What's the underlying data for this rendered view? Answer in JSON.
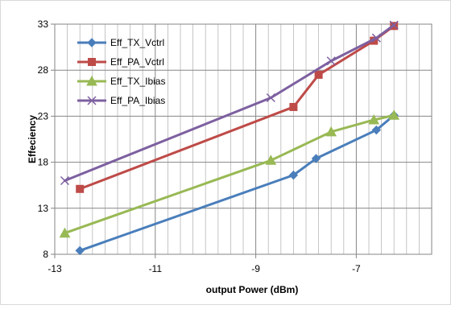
{
  "chart_data": {
    "type": "line",
    "title": "",
    "xlabel": "output Power (dBm)",
    "ylabel": "Effeciency",
    "xlim": [
      -13,
      -5.5
    ],
    "ylim": [
      8,
      33
    ],
    "xticks": [
      -13,
      -11,
      -9,
      -7
    ],
    "yticks": [
      8,
      13,
      18,
      23,
      28,
      33
    ],
    "grid": true,
    "legend_position": "top-left",
    "series": [
      {
        "name": "Eff_TX_Vctrl",
        "color": "#4a7ebb",
        "marker": "diamond",
        "x": [
          -12.5,
          -8.25,
          -7.8,
          -6.6,
          -6.25
        ],
        "y": [
          8.4,
          16.6,
          18.4,
          21.5,
          23.1
        ]
      },
      {
        "name": "Eff_PA_Vctrl",
        "color": "#be4b48",
        "marker": "square",
        "x": [
          -12.5,
          -8.25,
          -7.75,
          -6.65,
          -6.25
        ],
        "y": [
          15.1,
          24.0,
          27.5,
          31.2,
          32.8
        ]
      },
      {
        "name": "Eff_TX_Ibias",
        "color": "#98b954",
        "marker": "triangle",
        "x": [
          -12.8,
          -8.7,
          -7.5,
          -6.65,
          -6.25
        ],
        "y": [
          10.3,
          18.2,
          21.3,
          22.6,
          23.1
        ]
      },
      {
        "name": "Eff_PA_Ibias",
        "color": "#7d60a0",
        "marker": "x",
        "x": [
          -12.8,
          -8.7,
          -7.5,
          -6.6,
          -6.25
        ],
        "y": [
          16.0,
          25.0,
          29.0,
          31.5,
          32.9
        ]
      }
    ]
  }
}
